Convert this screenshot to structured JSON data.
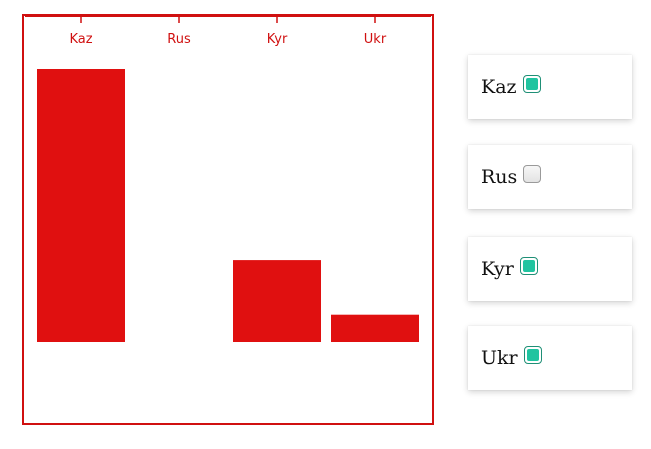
{
  "colors": {
    "bar": "#e01010",
    "axis": "#d01010",
    "frame": "#d01010",
    "tick_label": "#d01010",
    "checkbox_checked": "#20c4a0"
  },
  "chart_data": {
    "type": "bar",
    "categories": [
      "Kaz",
      "Rus",
      "Kyr",
      "Ukr"
    ],
    "values": [
      100,
      0,
      30,
      10
    ],
    "ylim": [
      0,
      100
    ],
    "title": "",
    "xlabel": "",
    "ylabel": "",
    "x_axis_position": "top",
    "grid": false
  },
  "filters": [
    {
      "label": "Kaz",
      "checked": true
    },
    {
      "label": "Rus",
      "checked": false
    },
    {
      "label": "Kyr",
      "checked": true
    },
    {
      "label": "Ukr",
      "checked": true
    }
  ]
}
